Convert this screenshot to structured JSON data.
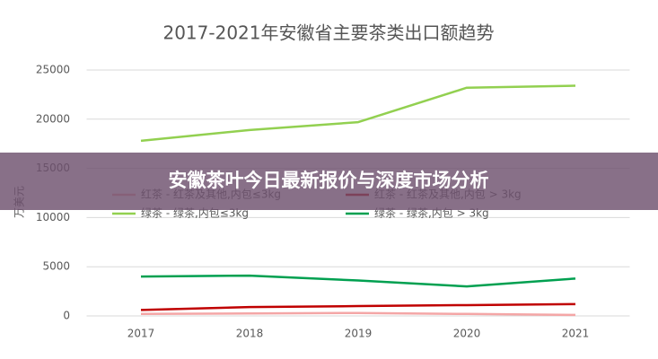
{
  "chart_data": {
    "type": "line",
    "title": "2017-2021年安徽省主要茶类出口额趋势",
    "y_label": "万美元",
    "categories": [
      "2017",
      "2018",
      "2019",
      "2020",
      "2021"
    ],
    "series": [
      {
        "name": "红茶 - 红茶及其他,内包≤3kg",
        "color": "#f4a6a6",
        "values": [
          200,
          250,
          300,
          200,
          100
        ]
      },
      {
        "name": "红茶 - 红茶及其他,内包 > 3kg",
        "color": "#c00000",
        "values": [
          600,
          900,
          1000,
          1100,
          1200
        ]
      },
      {
        "name": "绿茶 - 绿茶,内包≤3kg",
        "color": "#92d050",
        "values": [
          17800,
          18900,
          19700,
          23200,
          23400
        ]
      },
      {
        "name": "绿茶 - 绿茶,内包 > 3kg",
        "color": "#00a050",
        "values": [
          4000,
          4100,
          3600,
          3000,
          3800
        ]
      }
    ],
    "ylim": [
      0,
      25000
    ],
    "yticks": [
      0,
      5000,
      10000,
      15000,
      20000,
      25000
    ],
    "grid": true
  },
  "banner": {
    "text": "安徽茶叶今日最新报价与深度市场分析"
  }
}
